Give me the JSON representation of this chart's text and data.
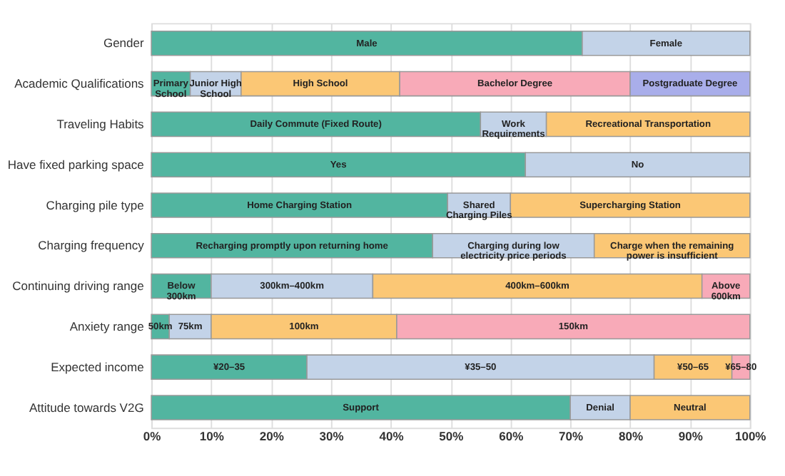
{
  "chart_data": {
    "type": "bar",
    "orientation": "horizontal",
    "stacked": true,
    "categories": [
      "Gender",
      "Academic Qualifications",
      "Traveling Habits",
      "Have fixed parking space",
      "Charging pile type",
      "Charging frequency",
      "Continuing driving range",
      "Anxiety range",
      "Expected income",
      "Attitude towards V2G"
    ],
    "series": [
      {
        "color": "#52b5a0",
        "values": [
          72,
          6.5,
          55,
          62.5,
          49.5,
          47,
          10,
          3,
          26,
          70
        ]
      },
      {
        "color": "#c3d3e8",
        "values": [
          28,
          8.5,
          11,
          37.5,
          10.5,
          27,
          27,
          7,
          58,
          10
        ]
      },
      {
        "color": "#fbc775",
        "values": [
          null,
          26.5,
          34,
          null,
          40,
          26,
          55,
          31,
          13,
          20
        ]
      },
      {
        "color": "#f8aab8",
        "values": [
          null,
          38.5,
          null,
          null,
          null,
          null,
          8,
          59,
          3,
          null
        ]
      },
      {
        "color": "#a9aeea",
        "values": [
          null,
          20,
          null,
          null,
          null,
          null,
          null,
          null,
          null,
          null
        ]
      }
    ],
    "annotations": [
      {
        "text": "Male",
        "x": 36,
        "y": "Gender"
      },
      {
        "text": "Female",
        "x": 86,
        "y": "Gender"
      },
      {
        "text": "Primary School",
        "x": 3.25,
        "y": "Academic Qualifications"
      },
      {
        "text": "Junior High School",
        "x": 10.75,
        "y": "Academic Qualifications"
      },
      {
        "text": "High School",
        "x": 28.25,
        "y": "Academic Qualifications"
      },
      {
        "text": "Bachelor Degree",
        "x": 60.75,
        "y": "Academic Qualifications"
      },
      {
        "text": "Postgraduate Degree",
        "x": 90,
        "y": "Academic Qualifications"
      },
      {
        "text": "Daily Commute (Fixed Route)",
        "x": 27.5,
        "y": "Traveling Habits"
      },
      {
        "text": "Work Requirements",
        "x": 60.5,
        "y": "Traveling Habits"
      },
      {
        "text": "Recreational Transportation",
        "x": 83,
        "y": "Traveling Habits"
      },
      {
        "text": "Yes",
        "x": 31.25,
        "y": "Have fixed parking space"
      },
      {
        "text": "No",
        "x": 81.25,
        "y": "Have fixed parking space"
      },
      {
        "text": "Home Charging Station",
        "x": 24.75,
        "y": "Charging pile type"
      },
      {
        "text": "Shared Charging Piles",
        "x": 54.75,
        "y": "Charging pile type"
      },
      {
        "text": "Supercharging Station",
        "x": 80,
        "y": "Charging pile type"
      },
      {
        "text": "Recharging promptly upon returning home",
        "x": 23.5,
        "y": "Charging frequency"
      },
      {
        "text": "Charging during low electricity price periods",
        "x": 60.5,
        "y": "Charging frequency"
      },
      {
        "text": "Charge when the remaining power is insufficient",
        "x": 87,
        "y": "Charging frequency"
      },
      {
        "text": "Below 300km",
        "x": 5,
        "y": "Continuing driving range"
      },
      {
        "text": "300km–400km",
        "x": 23.5,
        "y": "Continuing driving range"
      },
      {
        "text": "400km–600km",
        "x": 64.5,
        "y": "Continuing driving range"
      },
      {
        "text": "Above 600km",
        "x": 96,
        "y": "Continuing driving range"
      },
      {
        "text": "50km",
        "x": 1.5,
        "y": "Anxiety range"
      },
      {
        "text": "75km",
        "x": 6.5,
        "y": "Anxiety range"
      },
      {
        "text": "100km",
        "x": 25.5,
        "y": "Anxiety range"
      },
      {
        "text": "150km",
        "x": 70.5,
        "y": "Anxiety range"
      },
      {
        "text": "¥20–35",
        "x": 13,
        "y": "Expected income"
      },
      {
        "text": "¥35–50",
        "x": 55,
        "y": "Expected income"
      },
      {
        "text": "¥50–65",
        "x": 90.5,
        "y": "Expected income"
      },
      {
        "text": "¥65–80",
        "x": 98.5,
        "y": "Expected income"
      },
      {
        "text": "Support",
        "x": 35,
        "y": "Attitude towards V2G"
      },
      {
        "text": "Denial",
        "x": 75,
        "y": "Attitude towards V2G"
      },
      {
        "text": "Neutral",
        "x": 90,
        "y": "Attitude towards V2G"
      }
    ],
    "xlim": [
      0,
      100
    ],
    "xticks": [
      {
        "value": 0,
        "label": "0%"
      },
      {
        "value": 10,
        "label": "10%"
      },
      {
        "value": 20,
        "label": "20%"
      },
      {
        "value": 30,
        "label": "30%"
      },
      {
        "value": 40,
        "label": "40%"
      },
      {
        "value": 50,
        "label": "50%"
      },
      {
        "value": 60,
        "label": "60%"
      },
      {
        "value": 70,
        "label": "70%"
      },
      {
        "value": 80,
        "label": "80%"
      },
      {
        "value": 90,
        "label": "90%"
      },
      {
        "value": 100,
        "label": "100%"
      }
    ],
    "grid": "x",
    "legend": false
  }
}
